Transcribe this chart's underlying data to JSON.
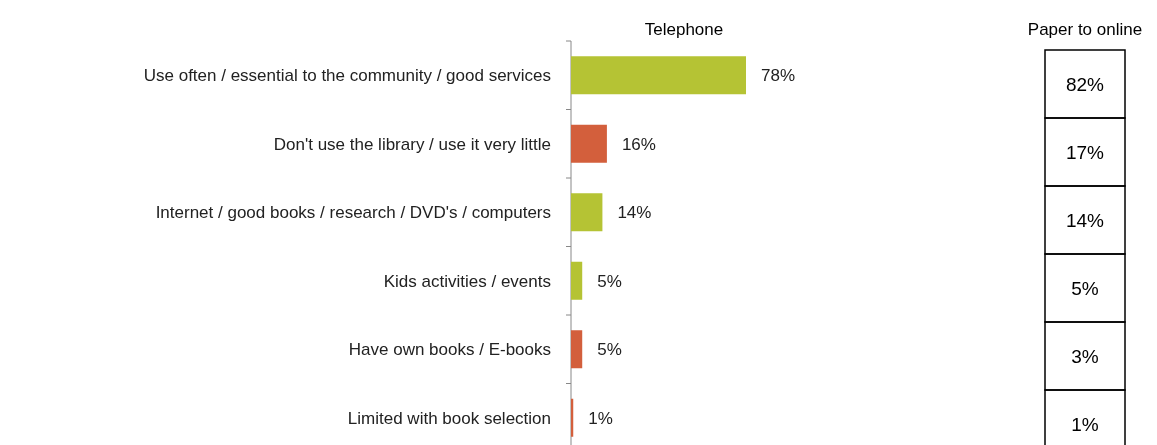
{
  "chart_data": [
    {
      "type": "bar",
      "orientation": "horizontal",
      "title": "Telephone",
      "categories": [
        "Use often / essential to the community / good services",
        "Don't use the library / use it very little",
        "Internet / good books / research / DVD's / computers",
        "Kids activities / events",
        "Have own books / E-books",
        "Limited with book selection"
      ],
      "values": [
        78,
        16,
        14,
        5,
        5,
        1
      ],
      "colors": [
        "#b5c334",
        "#d35f3c",
        "#b5c334",
        "#b5c334",
        "#d35f3c",
        "#d35f3c"
      ],
      "value_labels": [
        "78%",
        "16%",
        "14%",
        "5%",
        "5%",
        "1%"
      ]
    },
    {
      "type": "other",
      "title": "Paper to online",
      "values": [
        82,
        17,
        14,
        5,
        3,
        1
      ],
      "value_labels": [
        "82%",
        "17%",
        "14%",
        "5%",
        "3%",
        "1%"
      ]
    }
  ]
}
